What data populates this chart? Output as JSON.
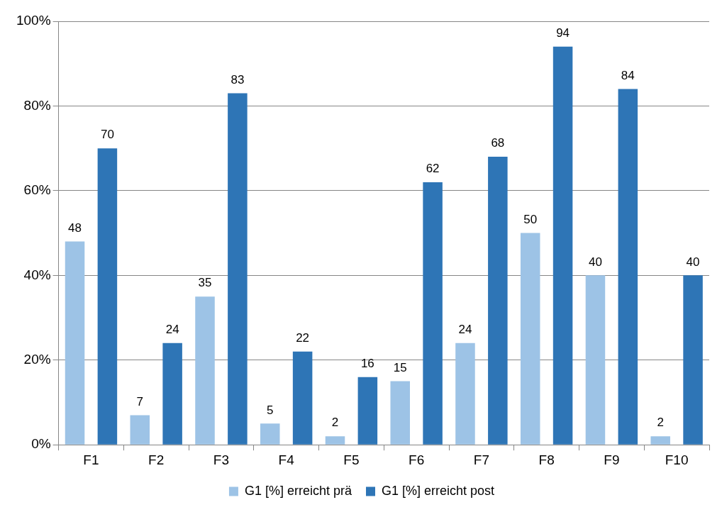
{
  "chart_data": {
    "type": "bar",
    "categories": [
      "F1",
      "F2",
      "F3",
      "F4",
      "F5",
      "F6",
      "F7",
      "F8",
      "F9",
      "F10"
    ],
    "series": [
      {
        "name": "G1 [%] erreicht prä",
        "color": "#9dc3e6",
        "values": [
          48,
          7,
          35,
          5,
          2,
          15,
          24,
          50,
          40,
          2
        ]
      },
      {
        "name": "G1 [%] erreicht post",
        "color": "#2e75b6",
        "values": [
          70,
          24,
          83,
          22,
          16,
          62,
          68,
          94,
          84,
          40
        ]
      }
    ],
    "ylim": [
      0,
      100
    ],
    "yticks": [
      {
        "value": 0,
        "label": "0%"
      },
      {
        "value": 20,
        "label": "20%"
      },
      {
        "value": 40,
        "label": "40%"
      },
      {
        "value": 60,
        "label": "60%"
      },
      {
        "value": 80,
        "label": "80%"
      },
      {
        "value": 100,
        "label": "100%"
      }
    ],
    "grid": "y",
    "legend": "bottom",
    "data_labels": true
  }
}
